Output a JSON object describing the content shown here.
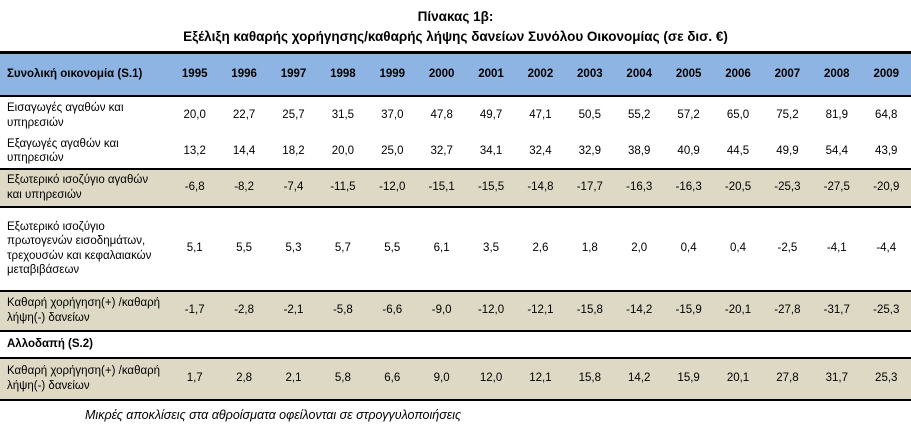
{
  "title": {
    "line1": "Πίνακας 1β:",
    "line2": "Εξέλιξη καθαρής χορήγησης/καθαρής λήψης δανείων Συνόλου Οικονομίας (σε δισ. €)"
  },
  "colors": {
    "header_bg": "#8DB4E2",
    "highlight_bg": "#DDD9C4",
    "border": "#000000",
    "text": "#000000"
  },
  "table": {
    "header_label": "Συνολική οικονομία (S.1)",
    "years": [
      "1995",
      "1996",
      "1997",
      "1998",
      "1999",
      "2000",
      "2001",
      "2002",
      "2003",
      "2004",
      "2005",
      "2006",
      "2007",
      "2008",
      "2009"
    ],
    "rows": [
      {
        "label": "Εισαγωγές αγαθών και υπηρεσιών",
        "style": "normal",
        "values": [
          "20,0",
          "22,7",
          "25,7",
          "31,5",
          "37,0",
          "47,8",
          "49,7",
          "47,1",
          "50,5",
          "55,2",
          "57,2",
          "65,0",
          "75,2",
          "81,9",
          "64,8"
        ]
      },
      {
        "label": "Εξαγωγές αγαθών και υπηρεσιών",
        "style": "normal",
        "values": [
          "13,2",
          "14,4",
          "18,2",
          "20,0",
          "25,0",
          "32,7",
          "34,1",
          "32,4",
          "32,9",
          "38,9",
          "40,9",
          "44,5",
          "49,9",
          "54,4",
          "43,9"
        ]
      },
      {
        "label": "Εξωτερικό ισοζύγιο αγαθών και υπηρεσιών",
        "style": "highlight",
        "values": [
          "-6,8",
          "-8,2",
          "-7,4",
          "-11,5",
          "-12,0",
          "-15,1",
          "-15,5",
          "-14,8",
          "-17,7",
          "-16,3",
          "-16,3",
          "-20,5",
          "-25,3",
          "-27,5",
          "-20,9"
        ]
      },
      {
        "label": "Εξωτερικό ισοζύγιο πρωτογενών εισοδημάτων, τρεχουσών και κεφαλαιακών μεταβιβάσεων",
        "style": "normal",
        "values": [
          "5,1",
          "5,5",
          "5,3",
          "5,7",
          "5,5",
          "6,1",
          "3,5",
          "2,6",
          "1,8",
          "2,0",
          "0,4",
          "0,4",
          "-2,5",
          "-4,1",
          "-4,4"
        ]
      },
      {
        "label": "Καθαρή χορήγηση(+) /καθαρή λήψη(-) δανείων",
        "style": "highlight",
        "values": [
          "-1,7",
          "-2,8",
          "-2,1",
          "-5,8",
          "-6,6",
          "-9,0",
          "-12,0",
          "-12,1",
          "-15,8",
          "-14,2",
          "-15,9",
          "-20,1",
          "-27,8",
          "-31,7",
          "-25,3"
        ]
      },
      {
        "label": "Αλλοδαπή (S.2)",
        "style": "section",
        "values": [
          "",
          "",
          "",
          "",
          "",
          "",
          "",
          "",
          "",
          "",
          "",
          "",
          "",
          "",
          ""
        ]
      },
      {
        "label": "Καθαρή χορήγηση(+) /καθαρή λήψη(-) δανείων",
        "style": "highlight",
        "values": [
          "1,7",
          "2,8",
          "2,1",
          "5,8",
          "6,6",
          "9,0",
          "12,0",
          "12,1",
          "15,8",
          "14,2",
          "15,9",
          "20,1",
          "27,8",
          "31,7",
          "25,3"
        ]
      }
    ]
  },
  "footnote": "Μικρές αποκλίσεις στα αθροίσματα οφείλονται σε στρογγυλοποιήσεις"
}
